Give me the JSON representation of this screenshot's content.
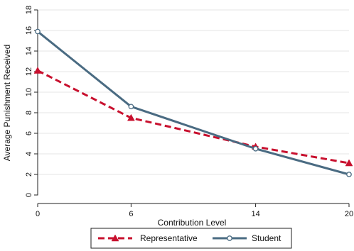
{
  "chart_data": {
    "type": "line",
    "title": "",
    "xlabel": "Contribution Level",
    "ylabel": "Average Punishment Received",
    "x": [
      0,
      6,
      14,
      20
    ],
    "x_ticks": [
      "0",
      "6",
      "14",
      "20"
    ],
    "y_ticks": [
      "0",
      "2",
      "4",
      "6",
      "8",
      "10",
      "12",
      "14",
      "16",
      "18"
    ],
    "xlim": [
      0,
      20
    ],
    "ylim": [
      0,
      18
    ],
    "grid": "horizontal",
    "legend_position": "bottom",
    "series": [
      {
        "name": "Representative",
        "values": [
          12.1,
          7.5,
          4.7,
          3.1
        ],
        "color": "#c8102e",
        "line": "dashed",
        "marker": "triangle"
      },
      {
        "name": "Student",
        "values": [
          15.9,
          8.6,
          4.5,
          2.0
        ],
        "color": "#4a6b82",
        "line": "solid",
        "marker": "hollow-circle"
      }
    ]
  }
}
